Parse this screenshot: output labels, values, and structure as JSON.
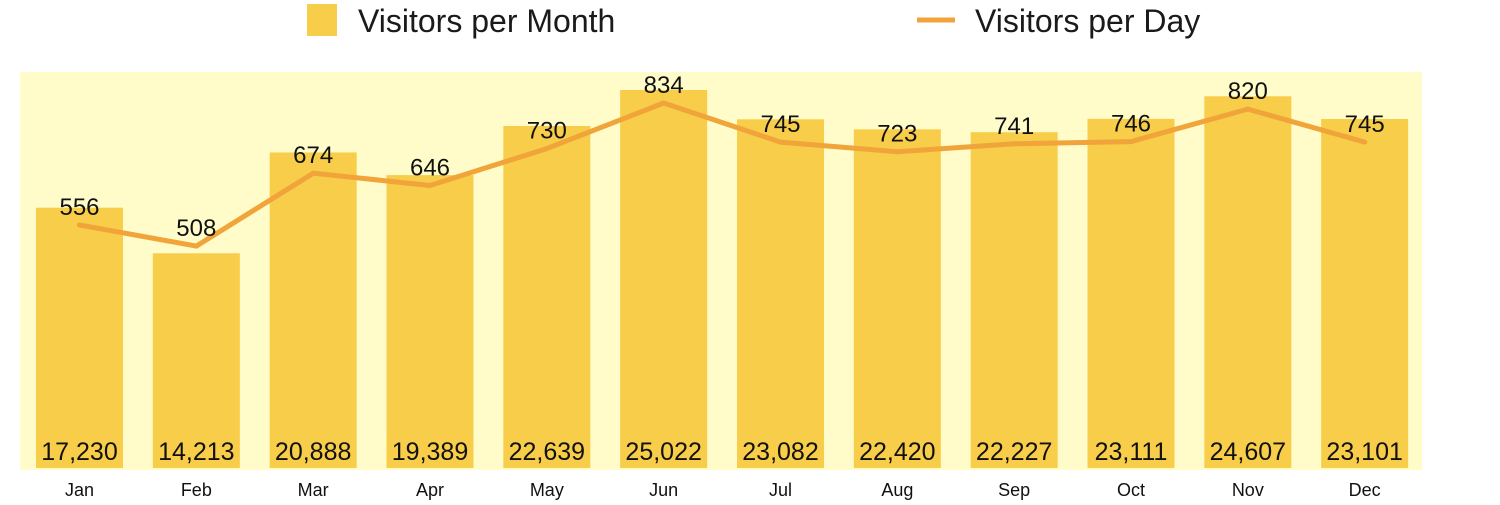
{
  "chart_data": {
    "type": "bar",
    "categories": [
      "Jan",
      "Feb",
      "Mar",
      "Apr",
      "May",
      "Jun",
      "Jul",
      "Aug",
      "Sep",
      "Oct",
      "Nov",
      "Dec"
    ],
    "series": [
      {
        "name": "Visitors per Month",
        "type": "bar",
        "values": [
          17230,
          14213,
          20888,
          19389,
          22639,
          25022,
          23082,
          22420,
          22227,
          23111,
          24607,
          23101
        ],
        "labels": [
          "17,230",
          "14,213",
          "20,888",
          "19,389",
          "22,639",
          "25,022",
          "23,082",
          "22,420",
          "22,227",
          "23,111",
          "24,607",
          "23,101"
        ]
      },
      {
        "name": "Visitors per Day",
        "type": "line",
        "values": [
          556,
          508,
          674,
          646,
          730,
          834,
          745,
          723,
          741,
          746,
          820,
          745
        ],
        "labels": [
          "556",
          "508",
          "674",
          "646",
          "730",
          "834",
          "745",
          "723",
          "741",
          "746",
          "820",
          "745"
        ]
      }
    ],
    "legend": {
      "position": "top",
      "items": [
        "Visitors per Month",
        "Visitors per Day"
      ]
    },
    "grid": false,
    "colors": {
      "bar": "#f7cd49",
      "line": "#f0a43a",
      "plot_background": "#fffcc9",
      "text": "#111111"
    }
  }
}
